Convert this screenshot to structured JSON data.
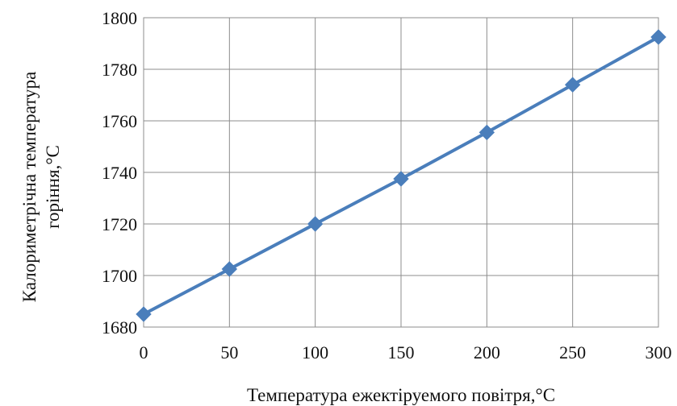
{
  "chart_data": {
    "type": "line",
    "title": "",
    "xlabel": "Температура ежектіруемого повітря,°С",
    "ylabel_line1": "Калориметрічна температура",
    "ylabel_line2": "горіння,°С",
    "x": [
      0,
      50,
      100,
      150,
      200,
      250,
      300
    ],
    "series": [
      {
        "values": [
          1685,
          1702.5,
          1720,
          1737.5,
          1755.5,
          1774,
          1792.5
        ],
        "color": "#4a7ebb",
        "marker": "diamond"
      }
    ],
    "xlim": [
      0,
      300
    ],
    "ylim": [
      1680,
      1800
    ],
    "xticks": [
      0,
      50,
      100,
      150,
      200,
      250,
      300
    ],
    "yticks": [
      1680,
      1700,
      1720,
      1740,
      1760,
      1780,
      1800
    ],
    "xtick_labels": [
      "0",
      "50",
      "100",
      "150",
      "200",
      "250",
      "300"
    ],
    "ytick_labels": [
      "1680",
      "1700",
      "1720",
      "1740",
      "1760",
      "1780",
      "1800"
    ],
    "grid": true,
    "legend": "none"
  }
}
